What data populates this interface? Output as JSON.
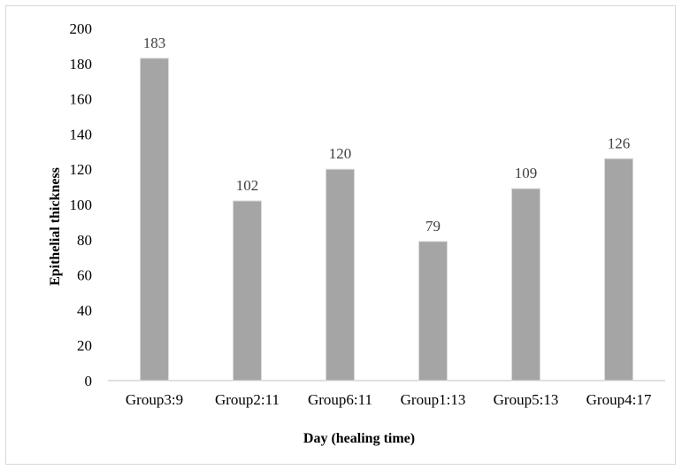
{
  "chart_data": {
    "type": "bar",
    "title": "",
    "xlabel": "Day (healing time)",
    "ylabel": "Epithelial thickness",
    "categories": [
      "Group3:9",
      "Group2:11",
      "Group6:11",
      "Group1:13",
      "Group5:13",
      "Group4:17"
    ],
    "values": [
      183,
      102,
      120,
      79,
      109,
      126
    ],
    "data_labels": [
      "183",
      "102",
      "120",
      "79",
      "109",
      "126"
    ],
    "ylim": [
      0,
      200
    ],
    "yticks": [
      0,
      20,
      40,
      60,
      80,
      100,
      120,
      140,
      160,
      180,
      200
    ],
    "ytick_labels": [
      "0",
      "20",
      "40",
      "60",
      "80",
      "100",
      "120",
      "140",
      "160",
      "180",
      "200"
    ],
    "grid": false,
    "legend": "none",
    "bar_color": "#a5a5a5",
    "bar_edge_color": "#d9d9d9",
    "axis_color": "#bfbfbf"
  }
}
